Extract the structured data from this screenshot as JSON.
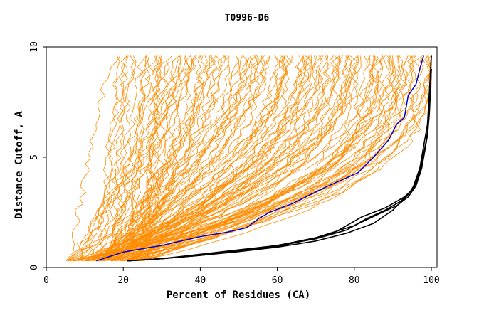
{
  "chart_data": {
    "type": "line",
    "title": "T0996-D6",
    "xlabel": "Percent of Residues (CA)",
    "ylabel": "Distance Cutoff, A",
    "xlim": [
      0,
      100
    ],
    "ylim": [
      0,
      10
    ],
    "x_ticks": [
      0,
      20,
      40,
      60,
      80,
      100
    ],
    "y_ticks": [
      0,
      5,
      10
    ],
    "grid": false,
    "legend": "none",
    "colors": {
      "background_models": "#ff8c00",
      "highlight_blue": "#0000cc",
      "highlight_black": "#000000"
    },
    "series_blue": {
      "x": [
        13,
        20,
        30,
        40,
        47,
        52,
        55,
        58,
        64,
        72,
        81,
        85,
        89,
        91,
        93,
        94,
        96,
        97,
        98
      ],
      "y": [
        0.3,
        0.7,
        1.0,
        1.4,
        1.6,
        1.8,
        2.2,
        2.5,
        2.9,
        3.6,
        4.3,
        5.0,
        5.8,
        6.5,
        6.8,
        7.8,
        8.3,
        9.0,
        9.6
      ]
    },
    "series_black": [
      {
        "x": [
          21,
          30,
          40,
          50,
          60,
          70,
          78,
          83,
          88,
          92,
          95,
          97,
          98,
          99,
          99.5,
          100
        ],
        "y": [
          0.3,
          0.4,
          0.6,
          0.8,
          1.0,
          1.3,
          1.7,
          2.2,
          2.6,
          3.0,
          3.5,
          4.5,
          5.5,
          6.5,
          8.0,
          9.6
        ]
      },
      {
        "x": [
          21,
          30,
          40,
          50,
          60,
          70,
          80,
          86,
          91,
          94,
          96,
          97.5,
          98.5,
          99.2,
          99.6,
          100
        ],
        "y": [
          0.3,
          0.4,
          0.55,
          0.75,
          1.0,
          1.35,
          1.9,
          2.4,
          2.8,
          3.2,
          3.7,
          4.5,
          5.5,
          6.5,
          7.5,
          9.0
        ]
      },
      {
        "x": [
          21,
          30,
          40,
          50,
          60,
          68,
          75,
          82,
          88,
          93,
          95.5,
          97,
          98,
          99,
          99.5,
          100
        ],
        "y": [
          0.3,
          0.4,
          0.55,
          0.75,
          0.95,
          1.25,
          1.6,
          2.3,
          2.7,
          3.2,
          3.6,
          4.4,
          5.2,
          6.0,
          7.0,
          9.0
        ]
      },
      {
        "x": [
          21,
          30,
          40,
          50,
          60,
          70,
          78,
          85,
          90,
          94,
          96.5,
          98,
          99,
          99.5,
          100
        ],
        "y": [
          0.3,
          0.4,
          0.55,
          0.72,
          0.92,
          1.2,
          1.55,
          2.0,
          2.6,
          3.3,
          4.0,
          5.0,
          6.0,
          7.2,
          9.6
        ]
      }
    ]
  }
}
